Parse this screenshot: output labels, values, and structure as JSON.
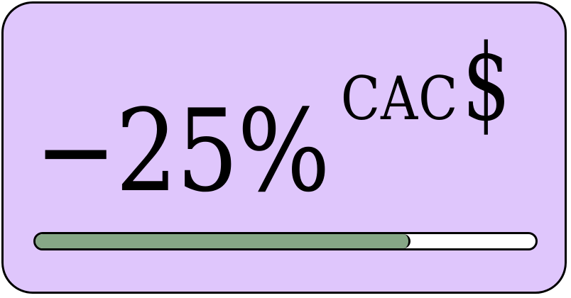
{
  "card": {
    "label": "CAC",
    "symbol": "$",
    "value": "−25%",
    "progress": 0.75
  },
  "colors": {
    "background": "#dfc6fc",
    "fill": "#86a786",
    "track": "#ffffff",
    "border": "#000000"
  },
  "icons": {
    "symbol": "dollar-sign-icon"
  }
}
